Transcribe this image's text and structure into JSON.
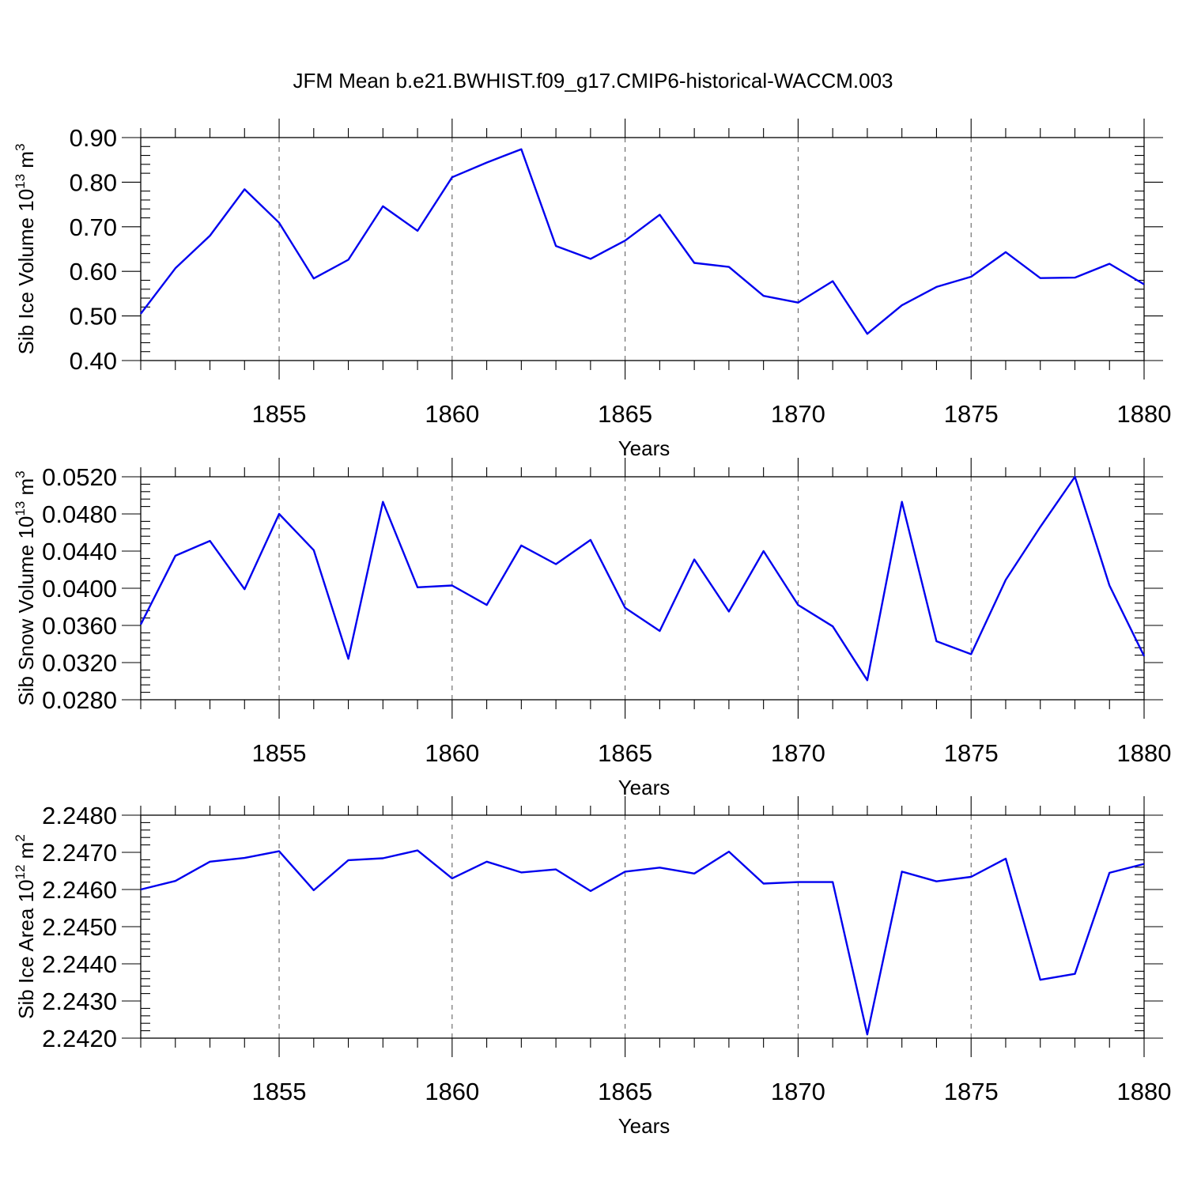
{
  "title": "JFM Mean b.e21.BWHIST.f09_g17.CMIP6-historical-WACCM.003",
  "line_color": "#0000ee",
  "chart_data": [
    {
      "type": "line",
      "ylabel": "Sib Ice Volume 10",
      "ylabel_exponent": "13",
      "ylabel_unit": " m",
      "ylabel_unit_exponent": "3",
      "xlabel": "Years",
      "xlim": [
        1851,
        1880
      ],
      "ylim": [
        0.4,
        0.9
      ],
      "xticks": [
        "1855",
        "1860",
        "1865",
        "1870",
        "1875",
        "1880"
      ],
      "yticks": [
        "0.40",
        "0.50",
        "0.60",
        "0.70",
        "0.80",
        "0.90"
      ],
      "ytick_step": 0.1,
      "yminor_step": 0.02,
      "x": [
        1851,
        1852,
        1853,
        1854,
        1855,
        1856,
        1857,
        1858,
        1859,
        1860,
        1861,
        1862,
        1863,
        1864,
        1865,
        1866,
        1867,
        1868,
        1869,
        1870,
        1871,
        1872,
        1873,
        1874,
        1875,
        1876,
        1877,
        1878,
        1879,
        1880
      ],
      "values": [
        0.505,
        0.607,
        0.68,
        0.784,
        0.709,
        0.584,
        0.626,
        0.746,
        0.691,
        0.811,
        0.844,
        0.874,
        0.657,
        0.628,
        0.669,
        0.727,
        0.619,
        0.61,
        0.545,
        0.53,
        0.578,
        0.46,
        0.524,
        0.565,
        0.588,
        0.643,
        0.585,
        0.586,
        0.617,
        0.571
      ],
      "grid": "dashed verticals at major x ticks"
    },
    {
      "type": "line",
      "ylabel": "Sib Snow Volume 10",
      "ylabel_exponent": "13",
      "ylabel_unit": " m",
      "ylabel_unit_exponent": "3",
      "xlabel": "Years",
      "xlim": [
        1851,
        1880
      ],
      "ylim": [
        0.028,
        0.052
      ],
      "xticks": [
        "1855",
        "1860",
        "1865",
        "1870",
        "1875",
        "1880"
      ],
      "yticks": [
        "0.0280",
        "0.0320",
        "0.0360",
        "0.0400",
        "0.0440",
        "0.0480",
        "0.0520"
      ],
      "ytick_step": 0.004,
      "yminor_step": 0.0008,
      "x": [
        1851,
        1852,
        1853,
        1854,
        1855,
        1856,
        1857,
        1858,
        1859,
        1860,
        1861,
        1862,
        1863,
        1864,
        1865,
        1866,
        1867,
        1868,
        1869,
        1870,
        1871,
        1872,
        1873,
        1874,
        1875,
        1876,
        1877,
        1878,
        1879,
        1880
      ],
      "values": [
        0.0361,
        0.0435,
        0.0451,
        0.0399,
        0.048,
        0.0441,
        0.0324,
        0.0493,
        0.0401,
        0.0403,
        0.0382,
        0.0446,
        0.0426,
        0.0452,
        0.0379,
        0.0354,
        0.0431,
        0.0375,
        0.044,
        0.0382,
        0.0359,
        0.0301,
        0.0493,
        0.0343,
        0.0329,
        0.0409,
        0.0466,
        0.052,
        0.0403,
        0.0327
      ],
      "grid": "dashed verticals at major x ticks"
    },
    {
      "type": "line",
      "ylabel": "Sib Ice Area 10",
      "ylabel_exponent": "12",
      "ylabel_unit": " m",
      "ylabel_unit_exponent": "2",
      "xlabel": "Years",
      "xlim": [
        1851,
        1880
      ],
      "ylim": [
        2.242,
        2.248
      ],
      "xticks": [
        "1855",
        "1860",
        "1865",
        "1870",
        "1875",
        "1880"
      ],
      "yticks": [
        "2.2420",
        "2.2430",
        "2.2440",
        "2.2450",
        "2.2460",
        "2.2470",
        "2.2480"
      ],
      "ytick_step": 0.001,
      "yminor_step": 0.0002,
      "x": [
        1851,
        1852,
        1853,
        1854,
        1855,
        1856,
        1857,
        1858,
        1859,
        1860,
        1861,
        1862,
        1863,
        1864,
        1865,
        1866,
        1867,
        1868,
        1869,
        1870,
        1871,
        1872,
        1873,
        1874,
        1875,
        1876,
        1877,
        1878,
        1879,
        1880
      ],
      "values": [
        2.246,
        2.24623,
        2.24675,
        2.24685,
        2.24703,
        2.24598,
        2.24679,
        2.24684,
        2.24705,
        2.2463,
        2.24675,
        2.24646,
        2.24654,
        2.24596,
        2.24648,
        2.24659,
        2.24643,
        2.24702,
        2.24616,
        2.2462,
        2.2462,
        2.2421,
        2.24648,
        2.24622,
        2.24634,
        2.24683,
        2.24357,
        2.24373,
        2.24645,
        2.24669
      ],
      "grid": "dashed verticals at major x ticks"
    }
  ]
}
